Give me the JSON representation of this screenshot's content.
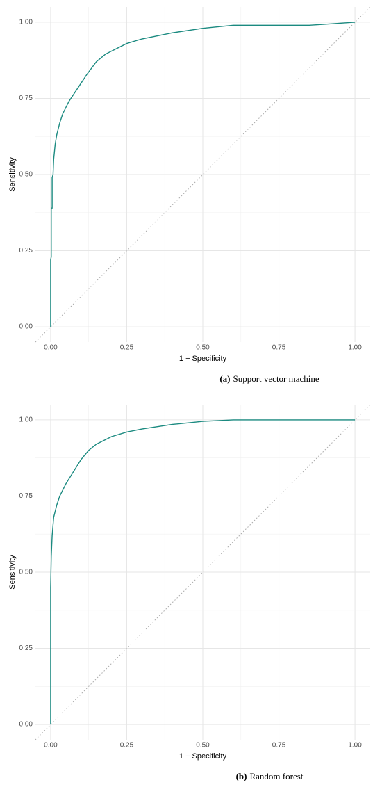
{
  "chart_data": [
    {
      "type": "line",
      "caption_label": "(a)",
      "caption": "Support vector machine",
      "xlabel": "1 − Specificity",
      "ylabel": "Sensitivity",
      "xlim": [
        -0.05,
        1.05
      ],
      "ylim": [
        -0.05,
        1.05
      ],
      "xticks": [
        {
          "value": 0,
          "label": "0.00"
        },
        {
          "value": 0.25,
          "label": "0.25"
        },
        {
          "value": 0.5,
          "label": "0.50"
        },
        {
          "value": 0.75,
          "label": "0.75"
        },
        {
          "value": 1,
          "label": "1.00"
        }
      ],
      "yticks": [
        {
          "value": 0,
          "label": "0.00"
        },
        {
          "value": 0.25,
          "label": "0.25"
        },
        {
          "value": 0.5,
          "label": "0.50"
        },
        {
          "value": 0.75,
          "label": "0.75"
        },
        {
          "value": 1,
          "label": "1.00"
        }
      ],
      "grid": true,
      "minor_grid": true,
      "reference_line": true,
      "series": [
        {
          "color": "#1b8a80",
          "x": [
            0,
            0,
            0.002,
            0.002,
            0.005,
            0.005,
            0.008,
            0.01,
            0.012,
            0.015,
            0.02,
            0.03,
            0.04,
            0.06,
            0.08,
            0.1,
            0.12,
            0.15,
            0.18,
            0.2,
            0.25,
            0.3,
            0.4,
            0.5,
            0.6,
            0.7,
            0.8,
            0.85,
            0.9,
            1.0
          ],
          "values": [
            0,
            0.22,
            0.23,
            0.39,
            0.39,
            0.49,
            0.5,
            0.55,
            0.57,
            0.6,
            0.63,
            0.67,
            0.7,
            0.74,
            0.77,
            0.8,
            0.83,
            0.87,
            0.895,
            0.905,
            0.93,
            0.945,
            0.965,
            0.98,
            0.99,
            0.99,
            0.99,
            0.99,
            0.993,
            1.0
          ]
        }
      ]
    },
    {
      "type": "line",
      "caption_label": "(b)",
      "caption": "Random forest",
      "xlabel": "1 − Specificity",
      "ylabel": "Sensitivity",
      "xlim": [
        -0.05,
        1.05
      ],
      "ylim": [
        -0.05,
        1.05
      ],
      "xticks": [
        {
          "value": 0,
          "label": "0.00"
        },
        {
          "value": 0.25,
          "label": "0.25"
        },
        {
          "value": 0.5,
          "label": "0.50"
        },
        {
          "value": 0.75,
          "label": "0.75"
        },
        {
          "value": 1,
          "label": "1.00"
        }
      ],
      "yticks": [
        {
          "value": 0,
          "label": "0.00"
        },
        {
          "value": 0.25,
          "label": "0.25"
        },
        {
          "value": 0.5,
          "label": "0.50"
        },
        {
          "value": 0.75,
          "label": "0.75"
        },
        {
          "value": 1,
          "label": "1.00"
        }
      ],
      "grid": true,
      "minor_grid": true,
      "reference_line": true,
      "series": [
        {
          "color": "#1b8a80",
          "x": [
            0,
            0,
            0.002,
            0.005,
            0.01,
            0.02,
            0.03,
            0.05,
            0.075,
            0.1,
            0.125,
            0.15,
            0.2,
            0.25,
            0.3,
            0.4,
            0.5,
            0.6,
            0.7,
            1.0
          ],
          "values": [
            0,
            0.45,
            0.55,
            0.62,
            0.68,
            0.72,
            0.75,
            0.79,
            0.83,
            0.87,
            0.9,
            0.92,
            0.945,
            0.96,
            0.97,
            0.985,
            0.995,
            1.0,
            1.0,
            1.0
          ]
        }
      ]
    }
  ]
}
